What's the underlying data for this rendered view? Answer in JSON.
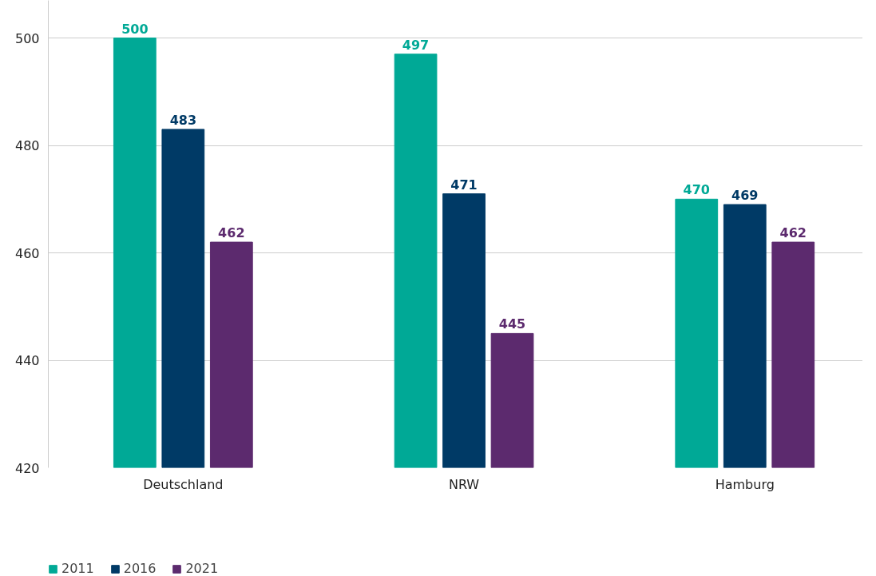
{
  "chart_data": {
    "type": "bar",
    "categories": [
      "Deutschland",
      "NRW",
      "Hamburg"
    ],
    "series": [
      {
        "name": "2011",
        "color": "#00a996",
        "values": [
          500,
          497,
          470
        ]
      },
      {
        "name": "2016",
        "color": "#003a66",
        "values": [
          483,
          471,
          469
        ]
      },
      {
        "name": "2021",
        "color": "#5c2a6e",
        "values": [
          462,
          445,
          462
        ]
      }
    ],
    "ylim": [
      420,
      507
    ],
    "yticks": [
      420,
      440,
      460,
      480,
      500
    ],
    "grid": "y",
    "legend": "bottom left",
    "data_labels": true
  }
}
